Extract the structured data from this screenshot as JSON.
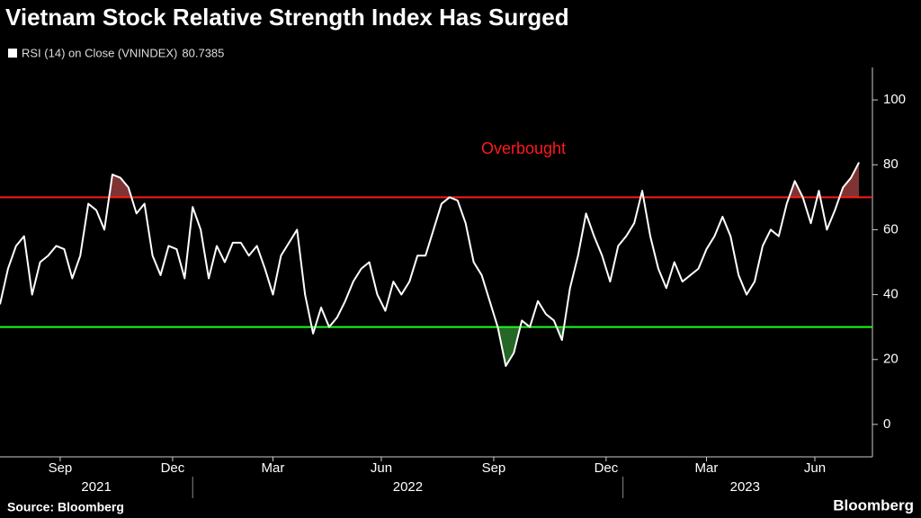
{
  "chart_data": {
    "type": "line",
    "title": "Vietnam Stock Relative Strength Index Has Surged",
    "series": [
      {
        "name": "RSI (14)  on Close (VNINDEX)",
        "color": "#ffffff",
        "values": [
          37,
          48,
          55,
          58,
          40,
          50,
          52,
          55,
          54,
          45,
          52,
          68,
          66,
          60,
          77,
          76,
          73,
          65,
          68,
          52,
          46,
          55,
          54,
          45,
          67,
          60,
          45,
          55,
          50,
          56,
          56,
          52,
          55,
          48,
          40,
          52,
          56,
          60,
          40,
          28,
          36,
          30,
          33,
          38,
          44,
          48,
          50,
          40,
          35,
          44,
          40,
          44,
          52,
          52,
          60,
          68,
          70,
          69,
          62,
          50,
          46,
          38,
          30,
          18,
          22,
          32,
          30,
          38,
          34,
          32,
          26,
          42,
          52,
          65,
          58,
          52,
          44,
          55,
          58,
          62,
          72,
          58,
          48,
          42,
          50,
          44,
          46,
          48,
          54,
          58,
          64,
          58,
          46,
          40,
          44,
          55,
          60,
          58,
          68,
          75,
          70,
          62,
          72,
          60,
          66,
          73,
          76,
          80.7385
        ]
      }
    ],
    "reference_lines": [
      {
        "value": 70,
        "color": "#ff1a1a",
        "label": "Overbought"
      },
      {
        "value": 30,
        "color": "#1aff1a"
      }
    ],
    "ylim": [
      -10,
      110
    ],
    "yticks": [
      0,
      20,
      40,
      60,
      80,
      100
    ],
    "xlim": [
      0,
      108
    ],
    "xticks": [
      {
        "value": 7.5,
        "label": "Sep"
      },
      {
        "value": 21.5,
        "label": "Dec"
      },
      {
        "value": 34,
        "label": "Mar"
      },
      {
        "value": 47.5,
        "label": "Jun"
      },
      {
        "value": 61.5,
        "label": "Sep"
      },
      {
        "value": 75.5,
        "label": "Dec"
      },
      {
        "value": 88,
        "label": "Mar"
      },
      {
        "value": 101.5,
        "label": "Jun"
      }
    ],
    "xgroups": [
      {
        "label": "2021",
        "start": 0,
        "end": 24
      },
      {
        "label": "2022",
        "start": 24,
        "end": 77.6
      },
      {
        "label": "2023",
        "start": 77.6,
        "end": 108
      }
    ],
    "source": "Source: Bloomberg",
    "brand": "Bloomberg"
  }
}
